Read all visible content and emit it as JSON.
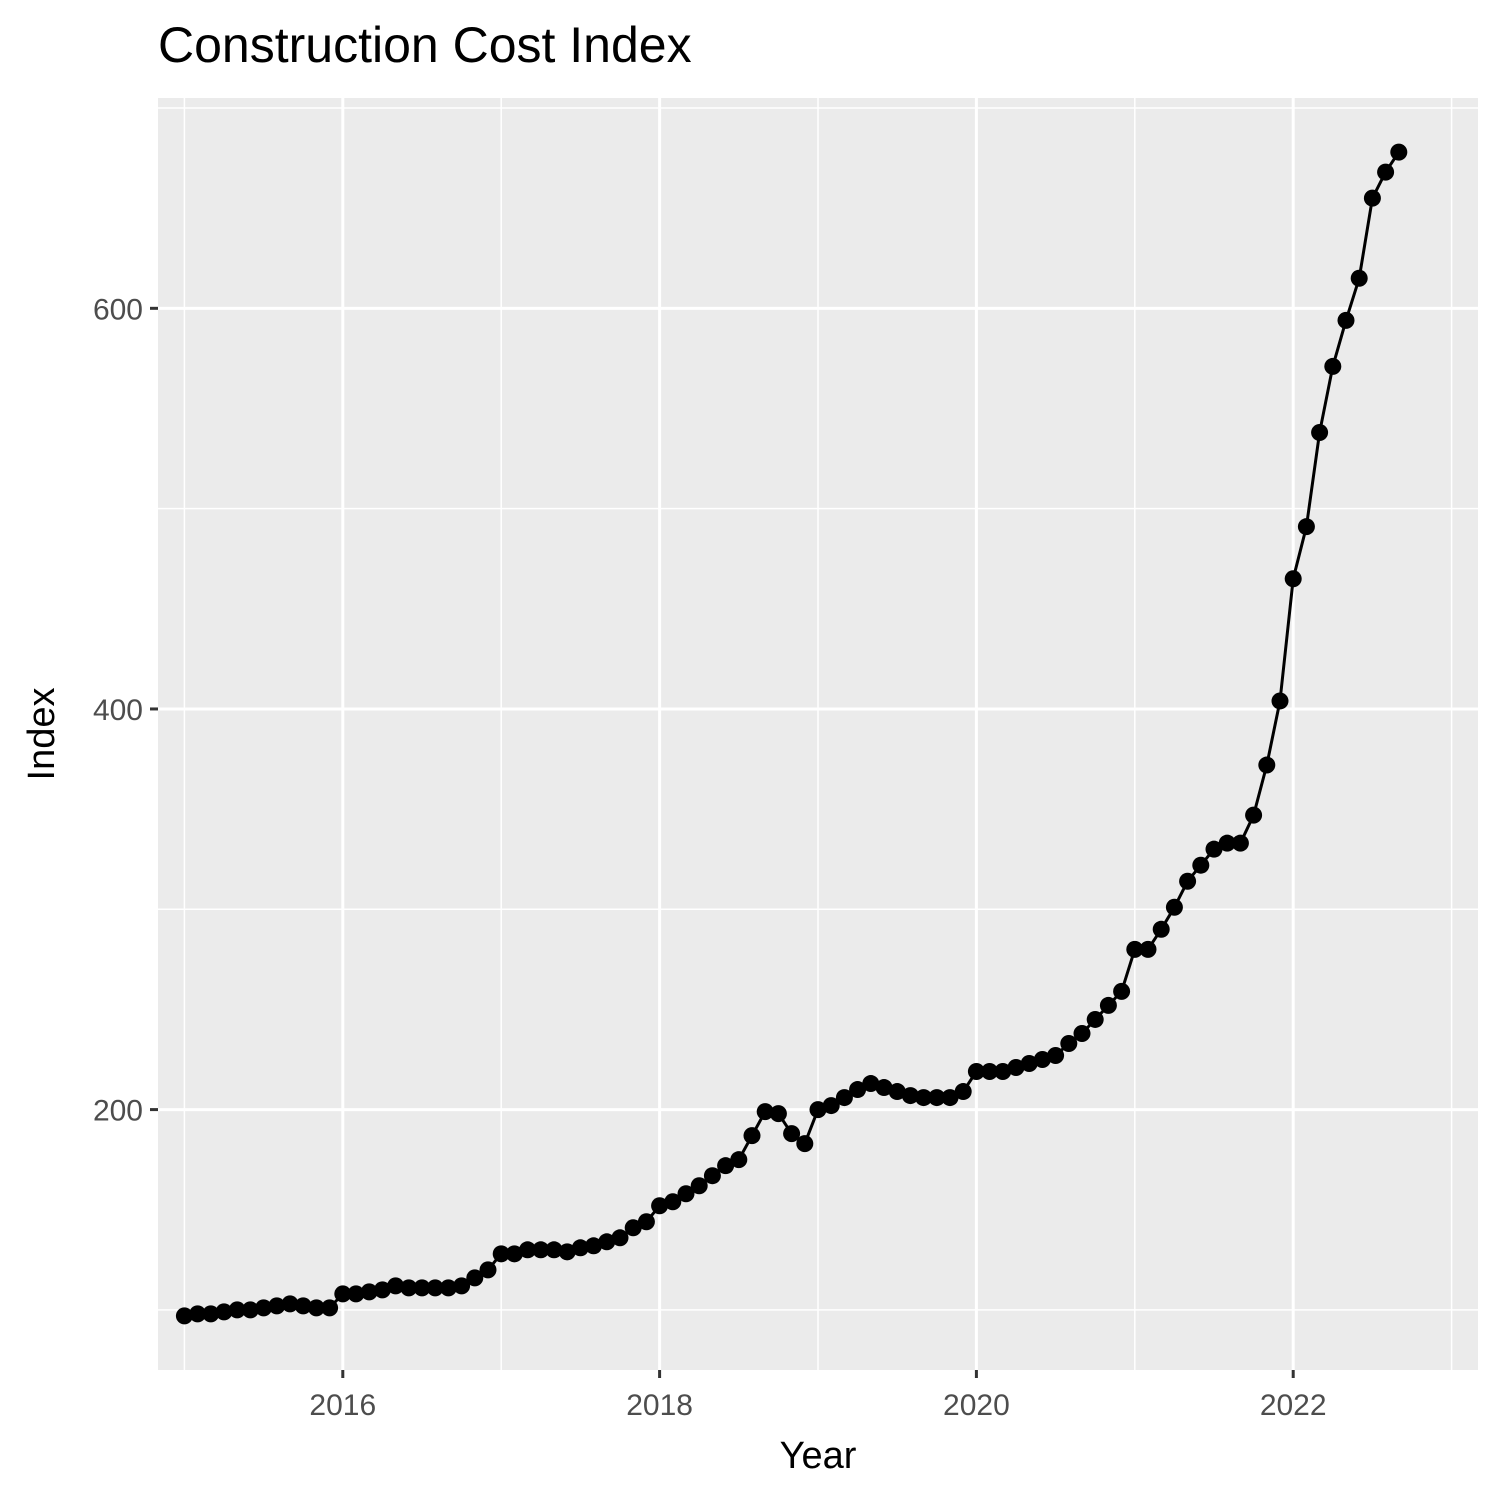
{
  "chart_data": {
    "type": "line",
    "title": "Construction Cost Index",
    "xlabel": "Year",
    "ylabel": "Index",
    "x_ticks": [
      "2016",
      "2018",
      "2020",
      "2022"
    ],
    "y_ticks": [
      "200",
      "400",
      "600"
    ],
    "xlim": [
      "2014-11-01",
      "2023-03-01"
    ],
    "ylim": [
      70,
      705
    ],
    "grid": true,
    "legend": "none",
    "markers": true,
    "colors": {
      "panel": "#ebebeb",
      "grid": "#ffffff",
      "line": "#000000",
      "tick_label": "#4d4d4d"
    },
    "series": [
      {
        "x": [
          "2015-01",
          "2015-02",
          "2015-03",
          "2015-04",
          "2015-05",
          "2015-06",
          "2015-07",
          "2015-08",
          "2015-09",
          "2015-10",
          "2015-11",
          "2015-12",
          "2016-01",
          "2016-02",
          "2016-03",
          "2016-04",
          "2016-05",
          "2016-06",
          "2016-07",
          "2016-08",
          "2016-09",
          "2016-10",
          "2016-11",
          "2016-12",
          "2017-01",
          "2017-02",
          "2017-03",
          "2017-04",
          "2017-05",
          "2017-06",
          "2017-07",
          "2017-08",
          "2017-09",
          "2017-10",
          "2017-11",
          "2017-12",
          "2018-01",
          "2018-02",
          "2018-03",
          "2018-04",
          "2018-05",
          "2018-06",
          "2018-07",
          "2018-08",
          "2018-09",
          "2018-10",
          "2018-11",
          "2018-12",
          "2019-01",
          "2019-02",
          "2019-03",
          "2019-04",
          "2019-05",
          "2019-06",
          "2019-07",
          "2019-08",
          "2019-09",
          "2019-10",
          "2019-11",
          "2019-12",
          "2020-01",
          "2020-02",
          "2020-03",
          "2020-04",
          "2020-05",
          "2020-06",
          "2020-07",
          "2020-08",
          "2020-09",
          "2020-10",
          "2020-11",
          "2020-12",
          "2021-01",
          "2021-02",
          "2021-03",
          "2021-04",
          "2021-05",
          "2021-06",
          "2021-07",
          "2021-08",
          "2021-09",
          "2021-10",
          "2021-11",
          "2021-12",
          "2022-01",
          "2022-02",
          "2022-03",
          "2022-04",
          "2022-05",
          "2022-06",
          "2022-07",
          "2022-08",
          "2022-09"
        ],
        "y": [
          97,
          98,
          98,
          99,
          100,
          100,
          101,
          102,
          103,
          102,
          101,
          101,
          108,
          108,
          109,
          110,
          112,
          111,
          111,
          111,
          111,
          112,
          116,
          120,
          128,
          128,
          130,
          130,
          130,
          129,
          131,
          132,
          134,
          136,
          141,
          144,
          152,
          154,
          158,
          162,
          167,
          172,
          175,
          187,
          199,
          198,
          188,
          183,
          200,
          202,
          206,
          210,
          213,
          211,
          209,
          207,
          206,
          206,
          206,
          209,
          219,
          219,
          219,
          221,
          223,
          225,
          227,
          233,
          238,
          245,
          252,
          259,
          280,
          280,
          290,
          301,
          314,
          322,
          330,
          333,
          333,
          347,
          372,
          404,
          465,
          491,
          538,
          571,
          594,
          615,
          655,
          668,
          678
        ]
      }
    ]
  }
}
